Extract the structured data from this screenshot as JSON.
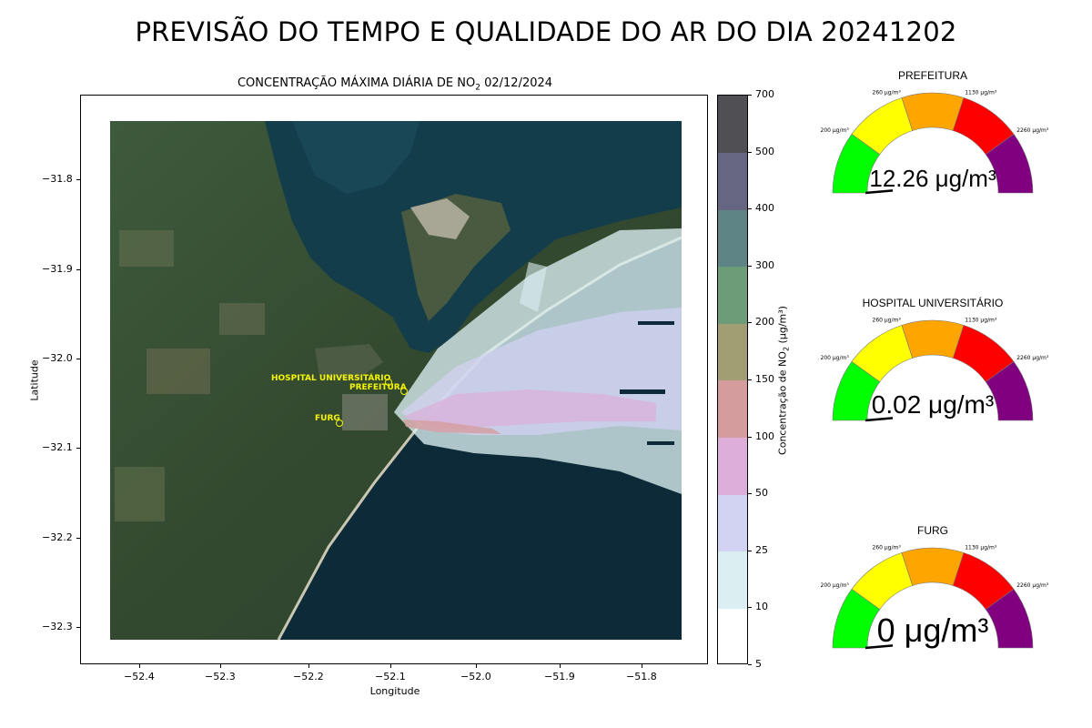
{
  "page_title": "PREVISÃO DO TEMPO E QUALIDADE DO AR DO DIA 20241202",
  "map": {
    "title_prefix": "CONCENTRAÇÃO MÁXIMA DIÁRIA DE NO",
    "title_sub": "2",
    "title_suffix": " 02/12/2024",
    "xlabel": "Longitude",
    "ylabel": "Latitude",
    "x_ticks": [
      "−52.4",
      "−52.3",
      "−52.2",
      "−52.1",
      "−52.0",
      "−51.9",
      "−51.8"
    ],
    "y_ticks": [
      "−31.8",
      "−31.9",
      "−32.0",
      "−32.1",
      "−32.2",
      "−32.3"
    ],
    "sites": [
      {
        "label": "HOSPITAL UNIVERSITÁRIO"
      },
      {
        "label": "PREFEITURA"
      },
      {
        "label": "FURG"
      }
    ]
  },
  "colorbar": {
    "label_prefix": "Concentração de NO",
    "label_sub": "2",
    "label_suffix": " (μg/m³)",
    "levels": [
      "5",
      "10",
      "25",
      "50",
      "100",
      "150",
      "200",
      "300",
      "400",
      "500",
      "700"
    ],
    "colors": [
      "#ffffff",
      "#dbeff2",
      "#d2d2f2",
      "#dcaed9",
      "#d49c9c",
      "#a29e74",
      "#6c9c78",
      "#5e8486",
      "#666683",
      "#505054"
    ]
  },
  "gauges": [
    {
      "title": "PREFEITURA",
      "value": "12.26 μg/m³",
      "value_num": 12.26
    },
    {
      "title": "HOSPITAL UNIVERSITÁRIO",
      "value": "0.02 μg/m³",
      "value_num": 0.02
    },
    {
      "title": "FURG",
      "value": "0 μg/m³",
      "value_num": 0
    }
  ],
  "gauge_ticks": [
    "200 μg/m³",
    "260 μg/m³",
    "1130 μg/m³",
    "2260 μg/m³"
  ],
  "gauge_colors": [
    "#00ff00",
    "#ffff00",
    "#ffa500",
    "#ff0000",
    "#800080"
  ]
}
